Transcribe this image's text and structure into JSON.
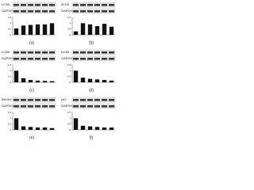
{
  "chart_data": [
    {
      "type": "bar",
      "label": "(a)",
      "blots": [
        "LC3B",
        "GAPDH"
      ],
      "categories": [
        null,
        null,
        null,
        null,
        null,
        null
      ],
      "values": [
        0.55,
        0.8,
        0.85,
        0.9,
        0.9,
        1.0
      ],
      "color": "#111111",
      "ylim": [
        0,
        1.5
      ],
      "yticks": [
        0,
        0.5,
        1,
        1.5
      ]
    },
    {
      "type": "bar",
      "label": "(b)",
      "blots": [
        "ATG5",
        "GAPDH"
      ],
      "categories": [
        null,
        null,
        null,
        null,
        null,
        null
      ],
      "values": [
        0.3,
        1.0,
        0.9,
        0.75,
        0.95,
        0.7
      ],
      "color": "#111111",
      "ylim": [
        0,
        1.5
      ],
      "yticks": [
        0,
        0.5,
        1,
        1.5
      ]
    },
    {
      "type": "bar",
      "label": "(c)",
      "blots": [
        "LC3B",
        "GAPDH"
      ],
      "categories": [
        null,
        null,
        null,
        null,
        null,
        null
      ],
      "values": [
        1.0,
        0.35,
        0.2,
        0.15,
        0.12,
        0.1
      ],
      "color": "#111111",
      "ylim": [
        0,
        1.5
      ],
      "yticks": [
        0,
        0.5,
        1,
        1.5
      ]
    },
    {
      "type": "bar",
      "label": "(d)",
      "blots": [
        "LC3B",
        "GAPDH"
      ],
      "categories": [
        null,
        null,
        null,
        null,
        null,
        null
      ],
      "values": [
        1.0,
        0.4,
        0.3,
        0.25,
        0.2,
        0.15
      ],
      "color": "#111111",
      "ylim": [
        0,
        1.5
      ],
      "yticks": [
        0,
        0.5,
        1,
        1.5
      ]
    },
    {
      "type": "bar",
      "label": "(e)",
      "blots": [
        "Beclin1",
        "GAPDH"
      ],
      "categories": [
        null,
        null,
        null,
        null,
        null,
        null
      ],
      "values": [
        1.0,
        0.3,
        0.25,
        0.2,
        0.2,
        0.15
      ],
      "color": "#111111",
      "ylim": [
        0,
        1.5
      ],
      "yticks": [
        0,
        0.5,
        1,
        1.5
      ]
    },
    {
      "type": "bar",
      "label": "(f)",
      "blots": [
        "p62",
        "GAPDH"
      ],
      "categories": [
        null,
        null,
        null,
        null,
        null,
        null
      ],
      "values": [
        1.0,
        0.35,
        0.3,
        0.25,
        0.2,
        0.2
      ],
      "color": "#111111",
      "ylim": [
        0,
        1.5
      ],
      "yticks": [
        0,
        0.5,
        1,
        1.5
      ]
    }
  ]
}
